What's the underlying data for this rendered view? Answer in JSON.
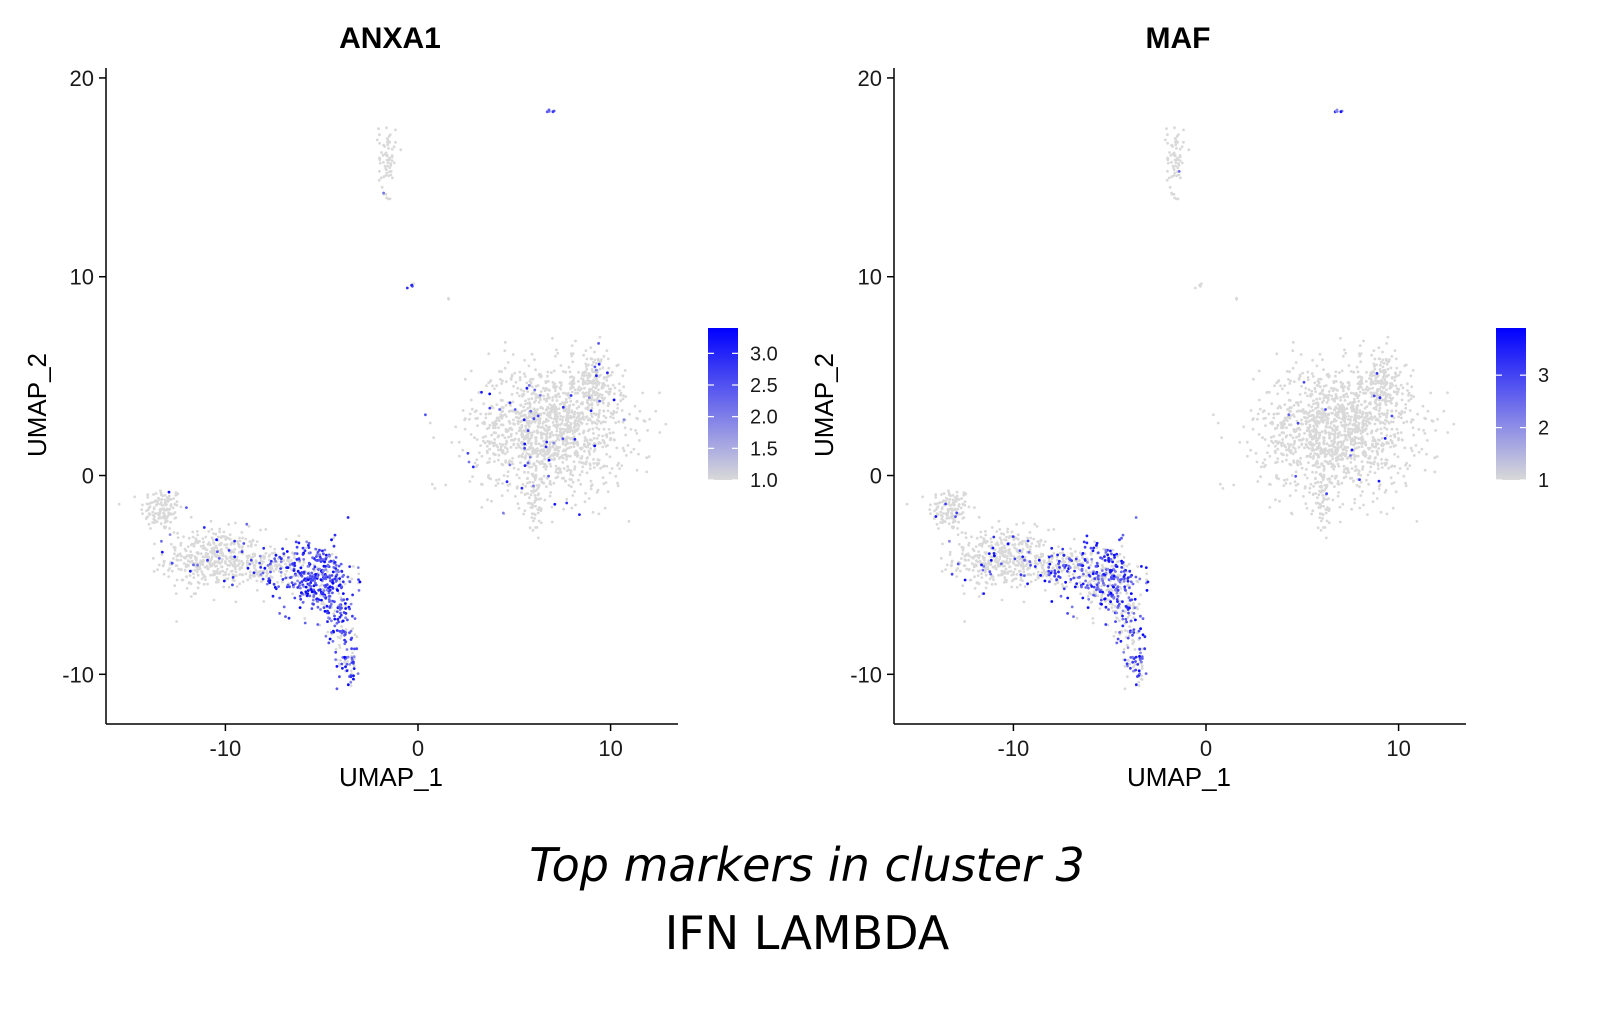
{
  "caption": {
    "line1": "Top markers in cluster 3",
    "line2": "IFN LAMBDA"
  },
  "colors": {
    "low": "#d9d9d9",
    "high": "#0000ff",
    "axis": "#000000"
  },
  "chart_data": [
    {
      "type": "scatter",
      "title": "ANXA1",
      "xlabel": "UMAP_1",
      "ylabel": "UMAP_2",
      "xlim": [
        -16.2,
        13.5
      ],
      "ylim": [
        -12.5,
        20.5
      ],
      "xticks": [
        -10,
        0,
        10
      ],
      "yticks": [
        -10,
        0,
        10,
        20
      ],
      "legend": {
        "position": "right",
        "scale_min": 1.0,
        "scale_max": 3.4,
        "ticks": [
          1.0,
          1.5,
          2.0,
          2.5,
          3.0
        ],
        "tick_labels": [
          "1.0",
          "1.5",
          "2.0",
          "2.5",
          "3.0"
        ]
      },
      "grid": false,
      "clusters": [
        {
          "name": "top-left blob",
          "cx": -13.3,
          "cy": -1.7,
          "sx": 0.55,
          "sy": 0.55,
          "n": 130,
          "expr": 0.02
        },
        {
          "name": "left body",
          "cx": -10.6,
          "cy": -4.2,
          "sx": 1.25,
          "sy": 0.75,
          "n": 420,
          "expr": 0.05
        },
        {
          "name": "bridge",
          "cx": -7.6,
          "cy": -4.6,
          "sx": 0.8,
          "sy": 0.45,
          "n": 150,
          "expr": 0.3
        },
        {
          "name": "cluster 3 core",
          "cx": -5.2,
          "cy": -5.2,
          "sx": 0.95,
          "sy": 0.9,
          "n": 360,
          "expr": 0.85
        },
        {
          "name": "tail upper",
          "cx": -4.0,
          "cy": -7.4,
          "sx": 0.45,
          "sy": 0.7,
          "n": 80,
          "expr": 0.7
        },
        {
          "name": "tail lower",
          "cx": -3.6,
          "cy": -9.3,
          "sx": 0.3,
          "sy": 0.6,
          "n": 55,
          "expr": 0.7
        },
        {
          "name": "top island",
          "cx": -1.6,
          "cy": 16.0,
          "sx": 0.22,
          "sy": 0.9,
          "n": 70,
          "expr": 0.02
        },
        {
          "name": "small mid",
          "cx": -0.3,
          "cy": 9.6,
          "sx": 0.08,
          "sy": 0.08,
          "n": 5,
          "expr": 0.6
        },
        {
          "name": "speck",
          "cx": 1.6,
          "cy": 8.8,
          "sx": 0.05,
          "sy": 0.05,
          "n": 2,
          "expr": 0.0
        },
        {
          "name": "far top",
          "cx": 6.9,
          "cy": 18.3,
          "sx": 0.1,
          "sy": 0.08,
          "n": 6,
          "expr": 0.9
        },
        {
          "name": "right mass",
          "cx": 6.8,
          "cy": 2.3,
          "sx": 2.0,
          "sy": 1.6,
          "n": 1300,
          "expr": 0.04
        },
        {
          "name": "right lobe",
          "cx": 9.2,
          "cy": 4.6,
          "sx": 0.6,
          "sy": 0.8,
          "n": 150,
          "expr": 0.04
        },
        {
          "name": "right stem",
          "cx": 6.1,
          "cy": -1.2,
          "sx": 0.25,
          "sy": 0.9,
          "n": 60,
          "expr": 0.02
        }
      ]
    },
    {
      "type": "scatter",
      "title": "MAF",
      "xlabel": "UMAP_1",
      "ylabel": "UMAP_2",
      "xlim": [
        -16.2,
        13.5
      ],
      "ylim": [
        -12.5,
        20.5
      ],
      "xticks": [
        -10,
        0,
        10
      ],
      "yticks": [
        -10,
        0,
        10,
        20
      ],
      "legend": {
        "position": "right",
        "scale_min": 1.0,
        "scale_max": 3.9,
        "ticks": [
          1,
          2,
          3
        ],
        "tick_labels": [
          "1",
          "2",
          "3"
        ]
      },
      "grid": false,
      "clusters": [
        {
          "name": "top-left blob",
          "cx": -13.3,
          "cy": -1.7,
          "sx": 0.55,
          "sy": 0.55,
          "n": 130,
          "expr": 0.02
        },
        {
          "name": "left body",
          "cx": -10.6,
          "cy": -4.2,
          "sx": 1.25,
          "sy": 0.75,
          "n": 420,
          "expr": 0.05
        },
        {
          "name": "bridge",
          "cx": -7.6,
          "cy": -4.6,
          "sx": 0.8,
          "sy": 0.45,
          "n": 150,
          "expr": 0.35
        },
        {
          "name": "cluster 3 core",
          "cx": -5.2,
          "cy": -5.2,
          "sx": 0.95,
          "sy": 0.9,
          "n": 360,
          "expr": 0.55
        },
        {
          "name": "tail upper",
          "cx": -4.0,
          "cy": -7.4,
          "sx": 0.45,
          "sy": 0.7,
          "n": 80,
          "expr": 0.5
        },
        {
          "name": "tail lower",
          "cx": -3.6,
          "cy": -9.3,
          "sx": 0.3,
          "sy": 0.6,
          "n": 55,
          "expr": 0.5
        },
        {
          "name": "top island",
          "cx": -1.6,
          "cy": 16.0,
          "sx": 0.22,
          "sy": 0.9,
          "n": 70,
          "expr": 0.02
        },
        {
          "name": "small mid",
          "cx": -0.3,
          "cy": 9.6,
          "sx": 0.08,
          "sy": 0.08,
          "n": 5,
          "expr": 0.0
        },
        {
          "name": "speck",
          "cx": 1.6,
          "cy": 8.8,
          "sx": 0.05,
          "sy": 0.05,
          "n": 2,
          "expr": 0.0
        },
        {
          "name": "far top",
          "cx": 6.9,
          "cy": 18.3,
          "sx": 0.1,
          "sy": 0.08,
          "n": 6,
          "expr": 0.8
        },
        {
          "name": "right mass",
          "cx": 6.8,
          "cy": 2.3,
          "sx": 2.0,
          "sy": 1.6,
          "n": 1300,
          "expr": 0.01
        },
        {
          "name": "right lobe",
          "cx": 9.2,
          "cy": 4.6,
          "sx": 0.6,
          "sy": 0.8,
          "n": 150,
          "expr": 0.02
        },
        {
          "name": "right stem",
          "cx": 6.1,
          "cy": -1.2,
          "sx": 0.25,
          "sy": 0.9,
          "n": 60,
          "expr": 0.0
        }
      ]
    }
  ]
}
